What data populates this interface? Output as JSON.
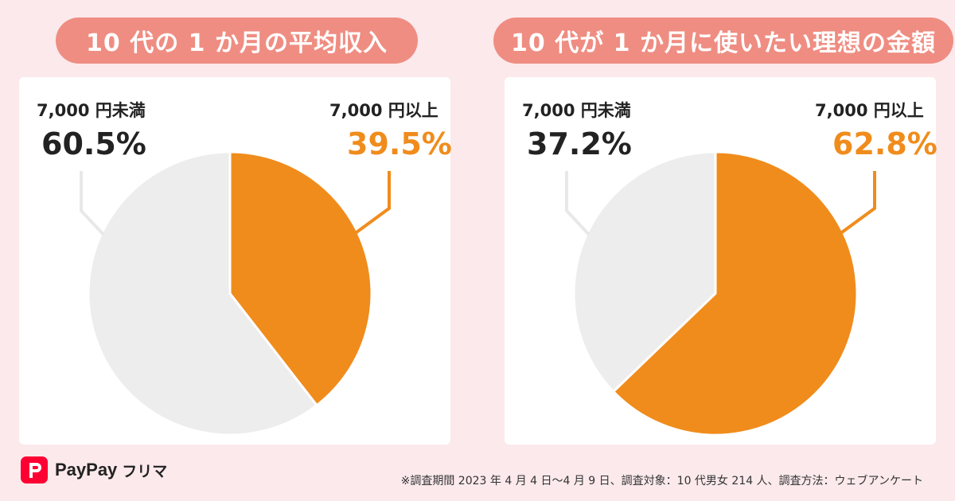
{
  "chart_data": [
    {
      "type": "pie",
      "title": "10 代の 1 か月の平均収入",
      "slices": [
        {
          "label": "7,000 円以上",
          "value": 39.5,
          "display": "39.5%",
          "color": "#f08c1c"
        },
        {
          "label": "7,000 円未満",
          "value": 60.5,
          "display": "60.5%",
          "color": "#ededed"
        }
      ]
    },
    {
      "type": "pie",
      "title": "10 代が 1 か月に使いたい理想の金額",
      "slices": [
        {
          "label": "7,000 円以上",
          "value": 62.8,
          "display": "62.8%",
          "color": "#f08c1c"
        },
        {
          "label": "7,000 円未満",
          "value": 37.2,
          "display": "37.2%",
          "color": "#ededed"
        }
      ]
    }
  ],
  "footer": {
    "note": "※調査期間 2023 年 4 月 4 日〜4 月 9 日、調査対象：10 代男女 214 人、調査方法：ウェブアンケート"
  },
  "brand": {
    "name": "PayPay",
    "sub": "フリマ",
    "color": "#ff0033"
  }
}
